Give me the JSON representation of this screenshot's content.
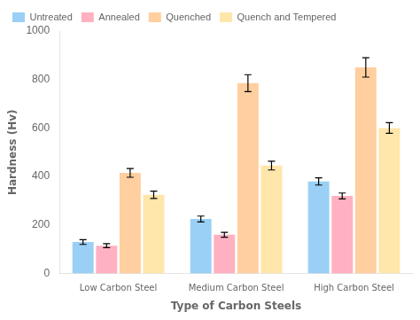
{
  "chart_data": {
    "type": "bar",
    "xlabel": "Type of Carbon Steels",
    "ylabel": "Hardness (Hv)",
    "categories": [
      "Low Carbon Steel",
      "Medium Carbon Steel",
      "High Carbon Steel"
    ],
    "series": [
      {
        "name": "Untreated",
        "values": [
          130,
          225,
          380
        ],
        "errors": [
          10,
          12,
          15
        ]
      },
      {
        "name": "Annealed",
        "values": [
          115,
          160,
          320
        ],
        "errors": [
          8,
          10,
          12
        ]
      },
      {
        "name": "Quenched",
        "values": [
          415,
          785,
          850
        ],
        "errors": [
          18,
          35,
          40
        ]
      },
      {
        "name": "Quench and Tempered",
        "values": [
          325,
          445,
          600
        ],
        "errors": [
          15,
          18,
          22
        ]
      }
    ],
    "ylim": [
      0,
      1000
    ],
    "yticks": [
      0,
      200,
      400,
      600,
      800,
      1000
    ],
    "grid": false,
    "legend": "upper left"
  }
}
